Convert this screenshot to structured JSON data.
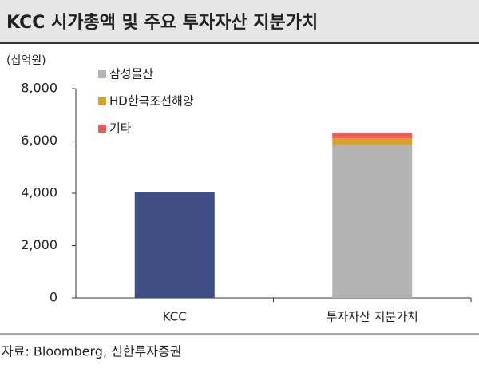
{
  "chart_data": {
    "type": "stacked-bar",
    "title": "KCC 시가총액 및 주요 투자자산 지분가치",
    "y_axis_label": "(십억원)",
    "source": "자료: Bloomberg, 신한투자증권",
    "categories": [
      "KCC",
      "투자자산 지분가치"
    ],
    "series": [
      {
        "color": "#3f4e85",
        "values": [
          4060,
          null
        ]
      },
      {
        "name": "삼성물산",
        "color": "#b3b3b3",
        "values": [
          null,
          5860
        ]
      },
      {
        "name": "HD한국조선해양",
        "color": "#d9a425",
        "values": [
          null,
          240
        ]
      },
      {
        "name": "기타",
        "color": "#ef5a5a",
        "values": [
          null,
          210
        ]
      }
    ],
    "ylim": [
      0,
      8000
    ],
    "yticks": [
      0,
      {
        "value": 2000,
        "label": "2,000"
      },
      {
        "value": 4000,
        "label": "4,000"
      },
      {
        "value": 6000,
        "label": "6,000"
      },
      {
        "value": 8000,
        "label": "8,000"
      }
    ],
    "legend": "upper-left"
  }
}
